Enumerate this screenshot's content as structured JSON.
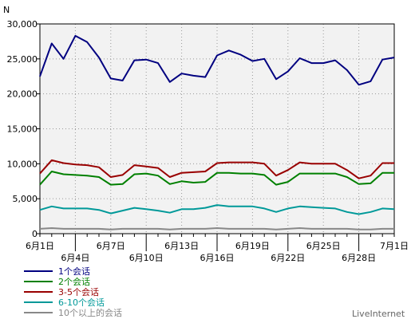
{
  "chart_data": {
    "type": "line",
    "ylabel": "N",
    "ylim": [
      0,
      30000
    ],
    "yticks": [
      0,
      5000,
      10000,
      15000,
      20000,
      25000,
      30000
    ],
    "ytick_labels": [
      "0",
      "5,000",
      "10,000",
      "15,000",
      "20,000",
      "25,000",
      "30,000"
    ],
    "grid": true,
    "legend_position": "bottom-left",
    "x": [
      "6月1日",
      "6月2日",
      "6月3日",
      "6月4日",
      "6月5日",
      "6月6日",
      "6月7日",
      "6月8日",
      "6月9日",
      "6月10日",
      "6月11日",
      "6月12日",
      "6月13日",
      "6月14日",
      "6月15日",
      "6月16日",
      "6月17日",
      "6月18日",
      "6月19日",
      "6月20日",
      "6月21日",
      "6月22日",
      "6月23日",
      "6月24日",
      "6月25日",
      "6月26日",
      "6月27日",
      "6月28日",
      "6月29日",
      "6月30日",
      "7月1日"
    ],
    "xtick_labels": [
      {
        "index": 0,
        "label": "6月1日",
        "row": 0
      },
      {
        "index": 3,
        "label": "6月4日",
        "row": 1
      },
      {
        "index": 6,
        "label": "6月7日",
        "row": 0
      },
      {
        "index": 9,
        "label": "6月10日",
        "row": 1
      },
      {
        "index": 12,
        "label": "6月13日",
        "row": 0
      },
      {
        "index": 15,
        "label": "6月16日",
        "row": 1
      },
      {
        "index": 18,
        "label": "6月19日",
        "row": 0
      },
      {
        "index": 21,
        "label": "6月22日",
        "row": 1
      },
      {
        "index": 24,
        "label": "6月25日",
        "row": 0
      },
      {
        "index": 27,
        "label": "6月28日",
        "row": 1
      },
      {
        "index": 30,
        "label": "7月1日",
        "row": 0
      }
    ],
    "series": [
      {
        "name": "1个会话",
        "color": "#000080",
        "values": [
          22500,
          27200,
          25000,
          28300,
          27400,
          25200,
          22200,
          21900,
          24800,
          24900,
          24400,
          21700,
          22900,
          22600,
          22400,
          25500,
          26200,
          25600,
          24700,
          25000,
          22100,
          23200,
          25100,
          24400,
          24400,
          24800,
          23400,
          21300,
          21800,
          24900,
          25200
        ]
      },
      {
        "name": "2个会话",
        "color": "#008000",
        "values": [
          7000,
          8900,
          8500,
          8400,
          8300,
          8100,
          7000,
          7100,
          8500,
          8600,
          8300,
          7100,
          7500,
          7300,
          7400,
          8700,
          8700,
          8600,
          8600,
          8400,
          7000,
          7400,
          8600,
          8600,
          8600,
          8600,
          8100,
          7100,
          7200,
          8700,
          8700
        ]
      },
      {
        "name": "3-5个会话",
        "color": "#990000",
        "values": [
          8600,
          10500,
          10100,
          9900,
          9800,
          9500,
          8100,
          8400,
          9800,
          9600,
          9400,
          8100,
          8700,
          8800,
          8900,
          10100,
          10200,
          10200,
          10200,
          10000,
          8300,
          9100,
          10200,
          10000,
          10000,
          10000,
          9100,
          7900,
          8300,
          10100,
          10100
        ]
      },
      {
        "name": "6-10个会话",
        "color": "#009999",
        "values": [
          3400,
          3900,
          3600,
          3600,
          3600,
          3400,
          2900,
          3300,
          3700,
          3500,
          3300,
          3000,
          3500,
          3500,
          3700,
          4100,
          3900,
          3900,
          3900,
          3600,
          3100,
          3600,
          3900,
          3800,
          3700,
          3600,
          3100,
          2800,
          3100,
          3600,
          3500
        ]
      },
      {
        "name": "10个以上的会话",
        "color": "#888888",
        "values": [
          700,
          800,
          700,
          700,
          700,
          700,
          600,
          700,
          700,
          700,
          700,
          600,
          700,
          700,
          700,
          800,
          700,
          700,
          700,
          700,
          600,
          700,
          800,
          700,
          700,
          700,
          700,
          600,
          600,
          700,
          700
        ]
      }
    ]
  },
  "brand": "LiveInternet"
}
